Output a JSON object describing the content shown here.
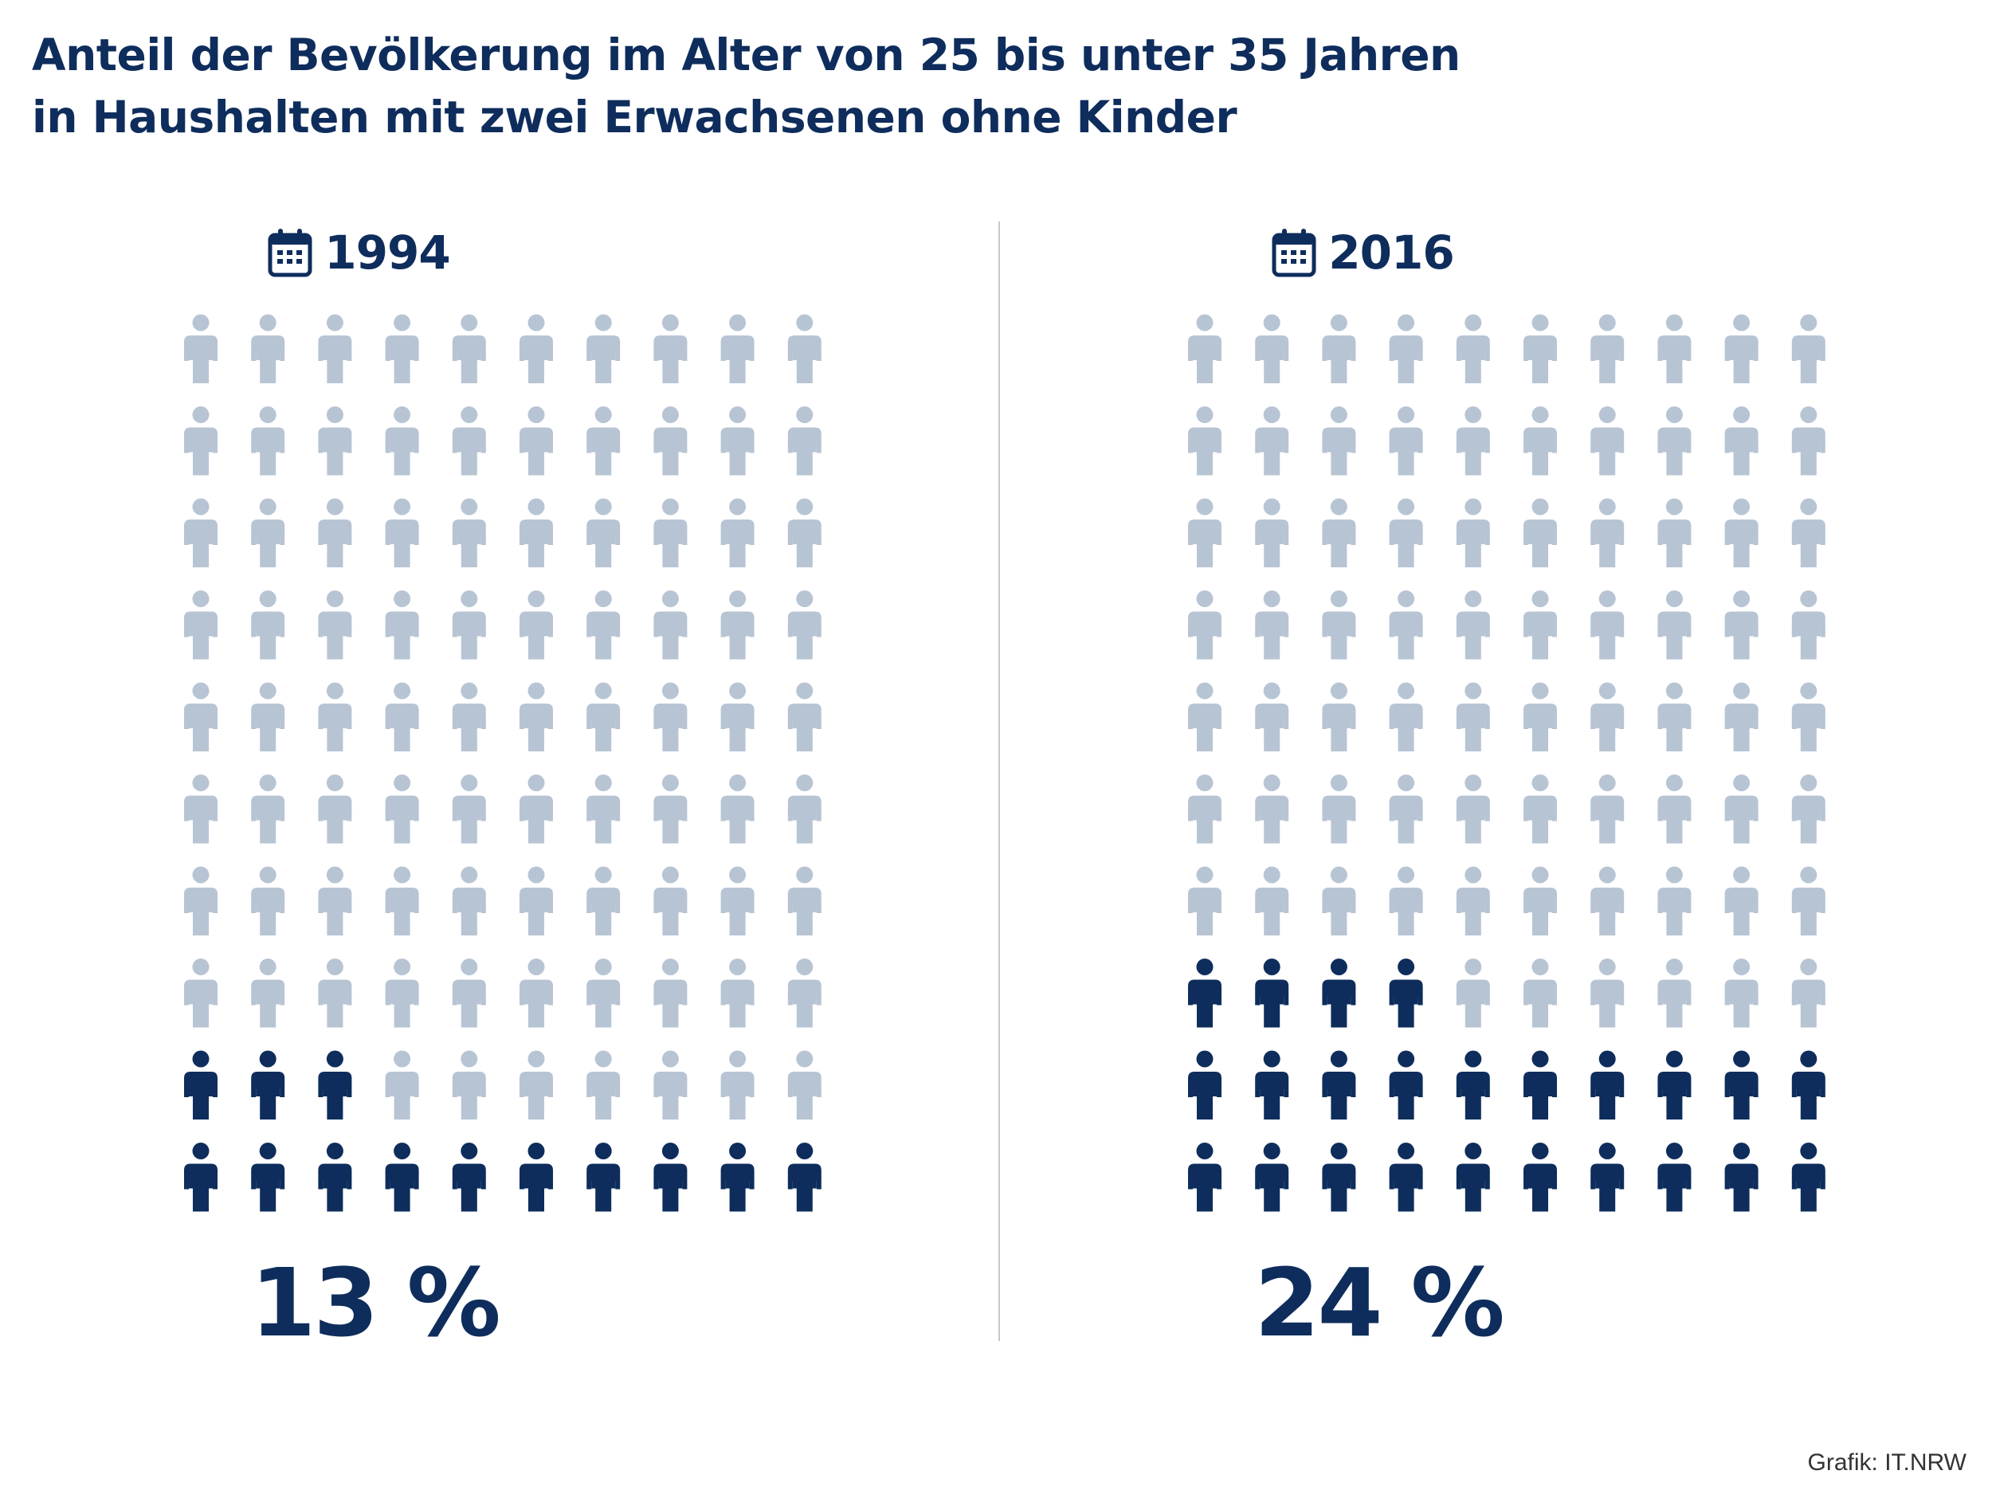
{
  "title": {
    "line1": "Anteil der Bevölkerung im Alter von 25 bis unter 35 Jahren",
    "line2": "in Haushalten mit zwei Erwachsenen ohne Kinder"
  },
  "credit": "Grafik: IT.NRW",
  "colors": {
    "highlight": "#0e2d5c",
    "base": "#b7c4d3"
  },
  "chart_data": [
    {
      "type": "pictogram",
      "year": "1994",
      "value": 13,
      "value_label": "13 %",
      "icons_total": 100,
      "icons_highlighted": 13,
      "icon": "calendar-icon"
    },
    {
      "type": "pictogram",
      "year": "2016",
      "value": 24,
      "value_label": "24 %",
      "icons_total": 100,
      "icons_highlighted": 24,
      "icon": "calendar-icon"
    }
  ]
}
